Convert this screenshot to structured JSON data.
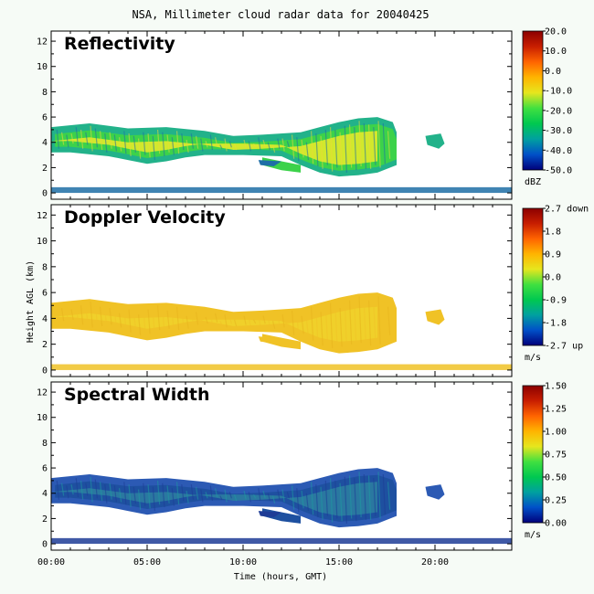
{
  "chart_data": {
    "type": "heatmap",
    "title": "NSA, Millimeter cloud radar data for 20040425",
    "xlabel": "Time (hours, GMT)",
    "ylabel": "Height AGL (km)",
    "xlim": [
      0,
      24
    ],
    "ylim": [
      -0.5,
      12.8
    ],
    "xticks": [
      "00:00",
      "05:00",
      "10:00",
      "15:00",
      "20:00"
    ],
    "yticks": [
      "0",
      "2",
      "4",
      "6",
      "8",
      "10",
      "12"
    ],
    "panels": [
      {
        "name": "Reflectivity",
        "colorbar_ticks": [
          "20.0",
          "10.0",
          "0.0",
          "-10.0",
          "-20.0",
          "-30.0",
          "-40.0",
          "-50.0"
        ],
        "colorbar_range": [
          -50,
          20
        ],
        "units": "dBZ",
        "colors": [
          "#00007a",
          "#0050c8",
          "#00a0a0",
          "#00c850",
          "#40e040",
          "#e6e61e",
          "#ffb400",
          "#ff6400",
          "#c81e00",
          "#8c0000"
        ],
        "layer_colors": [
          "#3cd24a",
          "#d2e82c",
          "#e8d83a",
          "#22b28a",
          "#1e6ea6"
        ]
      },
      {
        "name": "Doppler Velocity",
        "colorbar_ticks": [
          "2.7 down",
          "1.8",
          "0.9",
          "0.0",
          "-0.9",
          "-1.8",
          "-2.7 up"
        ],
        "colorbar_range": [
          -2.7,
          2.7
        ],
        "units": "m/s",
        "colors": [
          "#00007a",
          "#0050c8",
          "#00a0a0",
          "#00c850",
          "#40e040",
          "#e6e61e",
          "#ffb400",
          "#ff6400",
          "#c81e00",
          "#8c0000"
        ],
        "layer_colors": [
          "#f0c226",
          "#f0d02a",
          "#e8b41e",
          "#f0c226",
          "#f0c226"
        ]
      },
      {
        "name": "Spectral Width",
        "colorbar_ticks": [
          "1.50",
          "1.25",
          "1.00",
          "0.75",
          "0.50",
          "0.25",
          "0.00"
        ],
        "colorbar_range": [
          0,
          1.5
        ],
        "units": "m/s",
        "colors": [
          "#00007a",
          "#0050c8",
          "#00a0a0",
          "#00c850",
          "#40e040",
          "#e6e61e",
          "#ffb400",
          "#ff6400",
          "#c81e00",
          "#8c0000"
        ],
        "layer_colors": [
          "#1e50a0",
          "#2a78a0",
          "#1e9aa0",
          "#2c5ab4",
          "#1e3c96"
        ]
      }
    ],
    "cloud": {
      "main_top": [
        [
          0,
          5.2
        ],
        [
          2,
          5.5
        ],
        [
          4,
          5.1
        ],
        [
          6,
          5.2
        ],
        [
          8,
          4.9
        ],
        [
          9.5,
          4.5
        ],
        [
          11,
          4.6
        ],
        [
          13,
          4.8
        ],
        [
          14,
          5.2
        ],
        [
          15,
          5.6
        ],
        [
          16,
          5.9
        ],
        [
          17,
          6.0
        ],
        [
          17.8,
          5.6
        ],
        [
          18.0,
          4.8
        ]
      ],
      "main_base": [
        [
          18.0,
          2.2
        ],
        [
          17,
          1.6
        ],
        [
          16,
          1.4
        ],
        [
          15,
          1.3
        ],
        [
          14,
          1.6
        ],
        [
          13,
          2.2
        ],
        [
          12,
          2.9
        ],
        [
          10,
          3.0
        ],
        [
          8,
          3.0
        ],
        [
          7,
          2.8
        ],
        [
          6,
          2.5
        ],
        [
          5,
          2.3
        ],
        [
          4,
          2.6
        ],
        [
          3,
          2.9
        ],
        [
          1,
          3.2
        ],
        [
          0,
          3.2
        ]
      ],
      "lower_patch_top": [
        [
          11.0,
          2.8
        ],
        [
          12.0,
          2.5
        ],
        [
          13.0,
          2.2
        ]
      ],
      "lower_patch_base": [
        [
          13.0,
          1.6
        ],
        [
          12.0,
          1.8
        ],
        [
          11.0,
          2.2
        ]
      ],
      "small_patch": [
        [
          10.8,
          2.6
        ],
        [
          12.0,
          2.5
        ],
        [
          11.6,
          2.1
        ],
        [
          10.9,
          2.2
        ]
      ],
      "side_cell": [
        [
          19.5,
          4.5
        ],
        [
          20.3,
          4.7
        ],
        [
          20.5,
          3.9
        ],
        [
          20.2,
          3.5
        ],
        [
          19.6,
          3.8
        ]
      ],
      "ground_clutter": [
        [
          0,
          0.25
        ],
        [
          24,
          0.35
        ]
      ]
    }
  }
}
